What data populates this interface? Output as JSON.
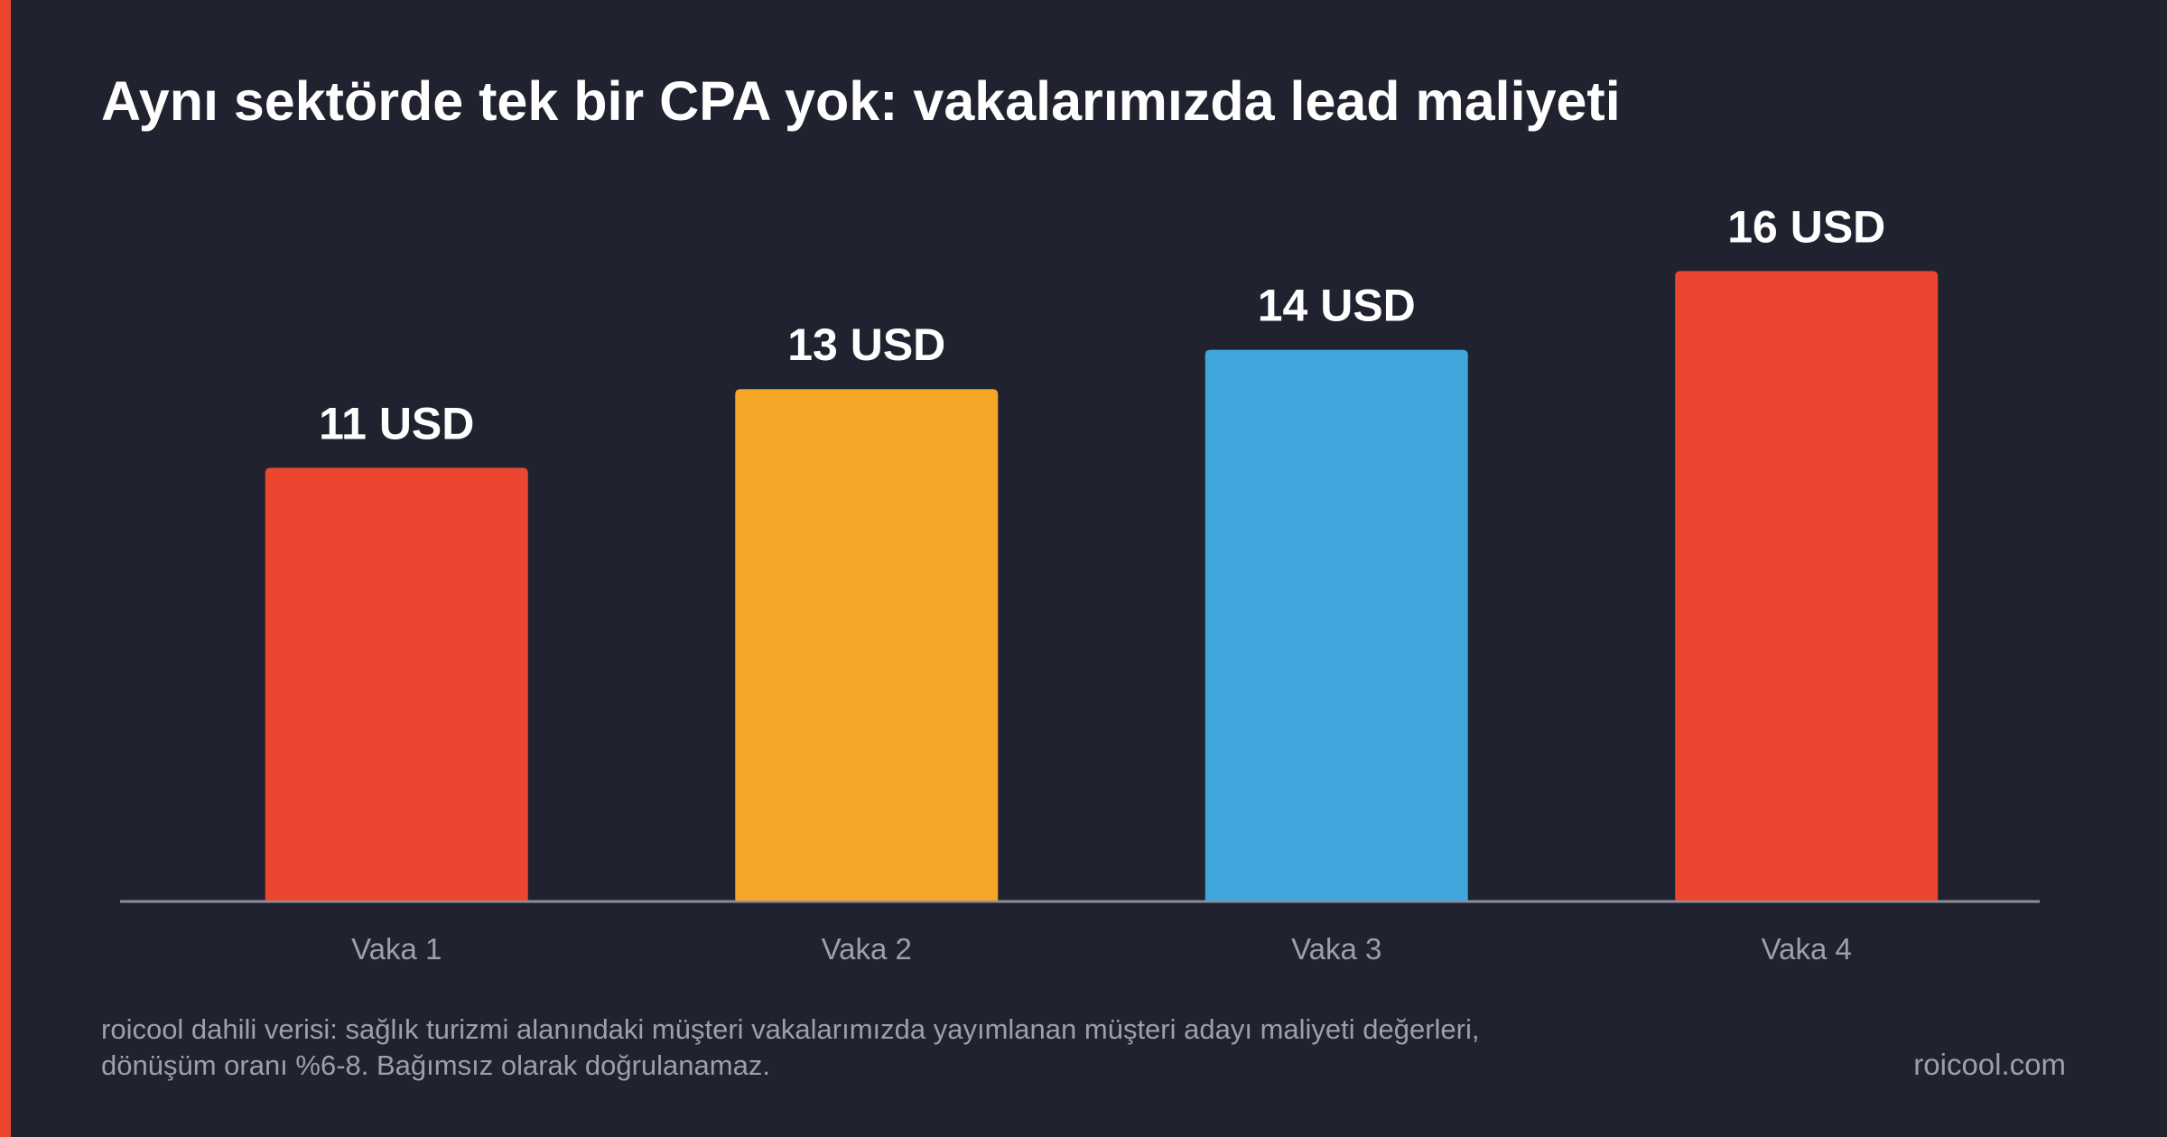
{
  "chart_data": {
    "type": "bar",
    "title": "Aynı sektörde tek bir CPA yok: vakalarımızda lead maliyeti",
    "categories": [
      "Vaka 1",
      "Vaka 2",
      "Vaka 3",
      "Vaka 4"
    ],
    "values": [
      11,
      13,
      14,
      16
    ],
    "value_labels": [
      "11 USD",
      "13 USD",
      "14 USD",
      "16 USD"
    ],
    "colors": [
      "#ea4630",
      "#f4a627",
      "#3ea6db",
      "#ea4630"
    ],
    "ylim": [
      0,
      20
    ],
    "footnote": [
      "roicool dahili verisi: sağlık turizmi alanındaki müşteri vakalarımızda yayımlanan müşteri adayı maliyeti değerleri,",
      "dönüşüm oranı %6-8. Bağımsız olarak doğrulanamaz."
    ],
    "source": "roicool.com"
  }
}
